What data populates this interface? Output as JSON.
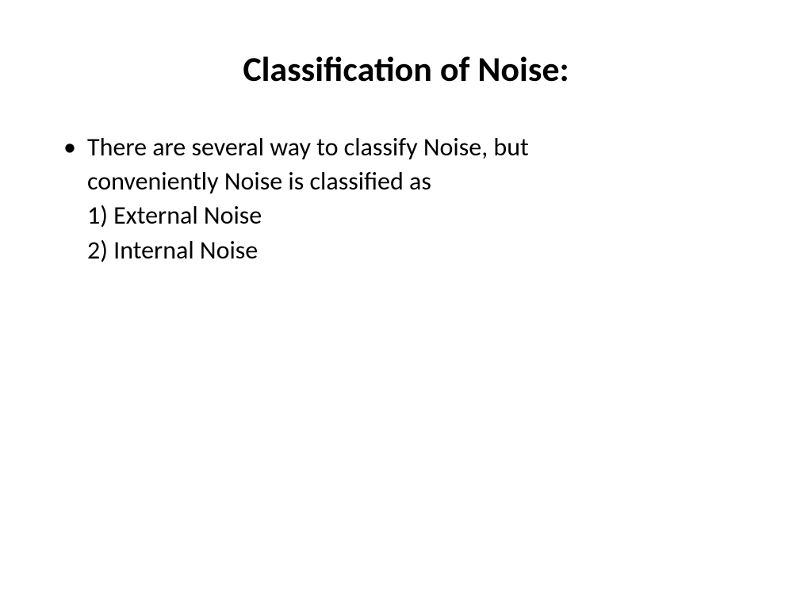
{
  "slide": {
    "title": "Classification of Noise:",
    "bullet": {
      "line1": "There are several way to classify Noise, but",
      "line2": "conveniently Noise is classified as",
      "line3": "1) External Noise",
      "line4": "2) Internal Noise"
    }
  },
  "style": {
    "background_color": "#ffffff",
    "text_color": "#000000",
    "title_fontsize": 44,
    "body_fontsize": 32,
    "font_family": "Calibri"
  }
}
